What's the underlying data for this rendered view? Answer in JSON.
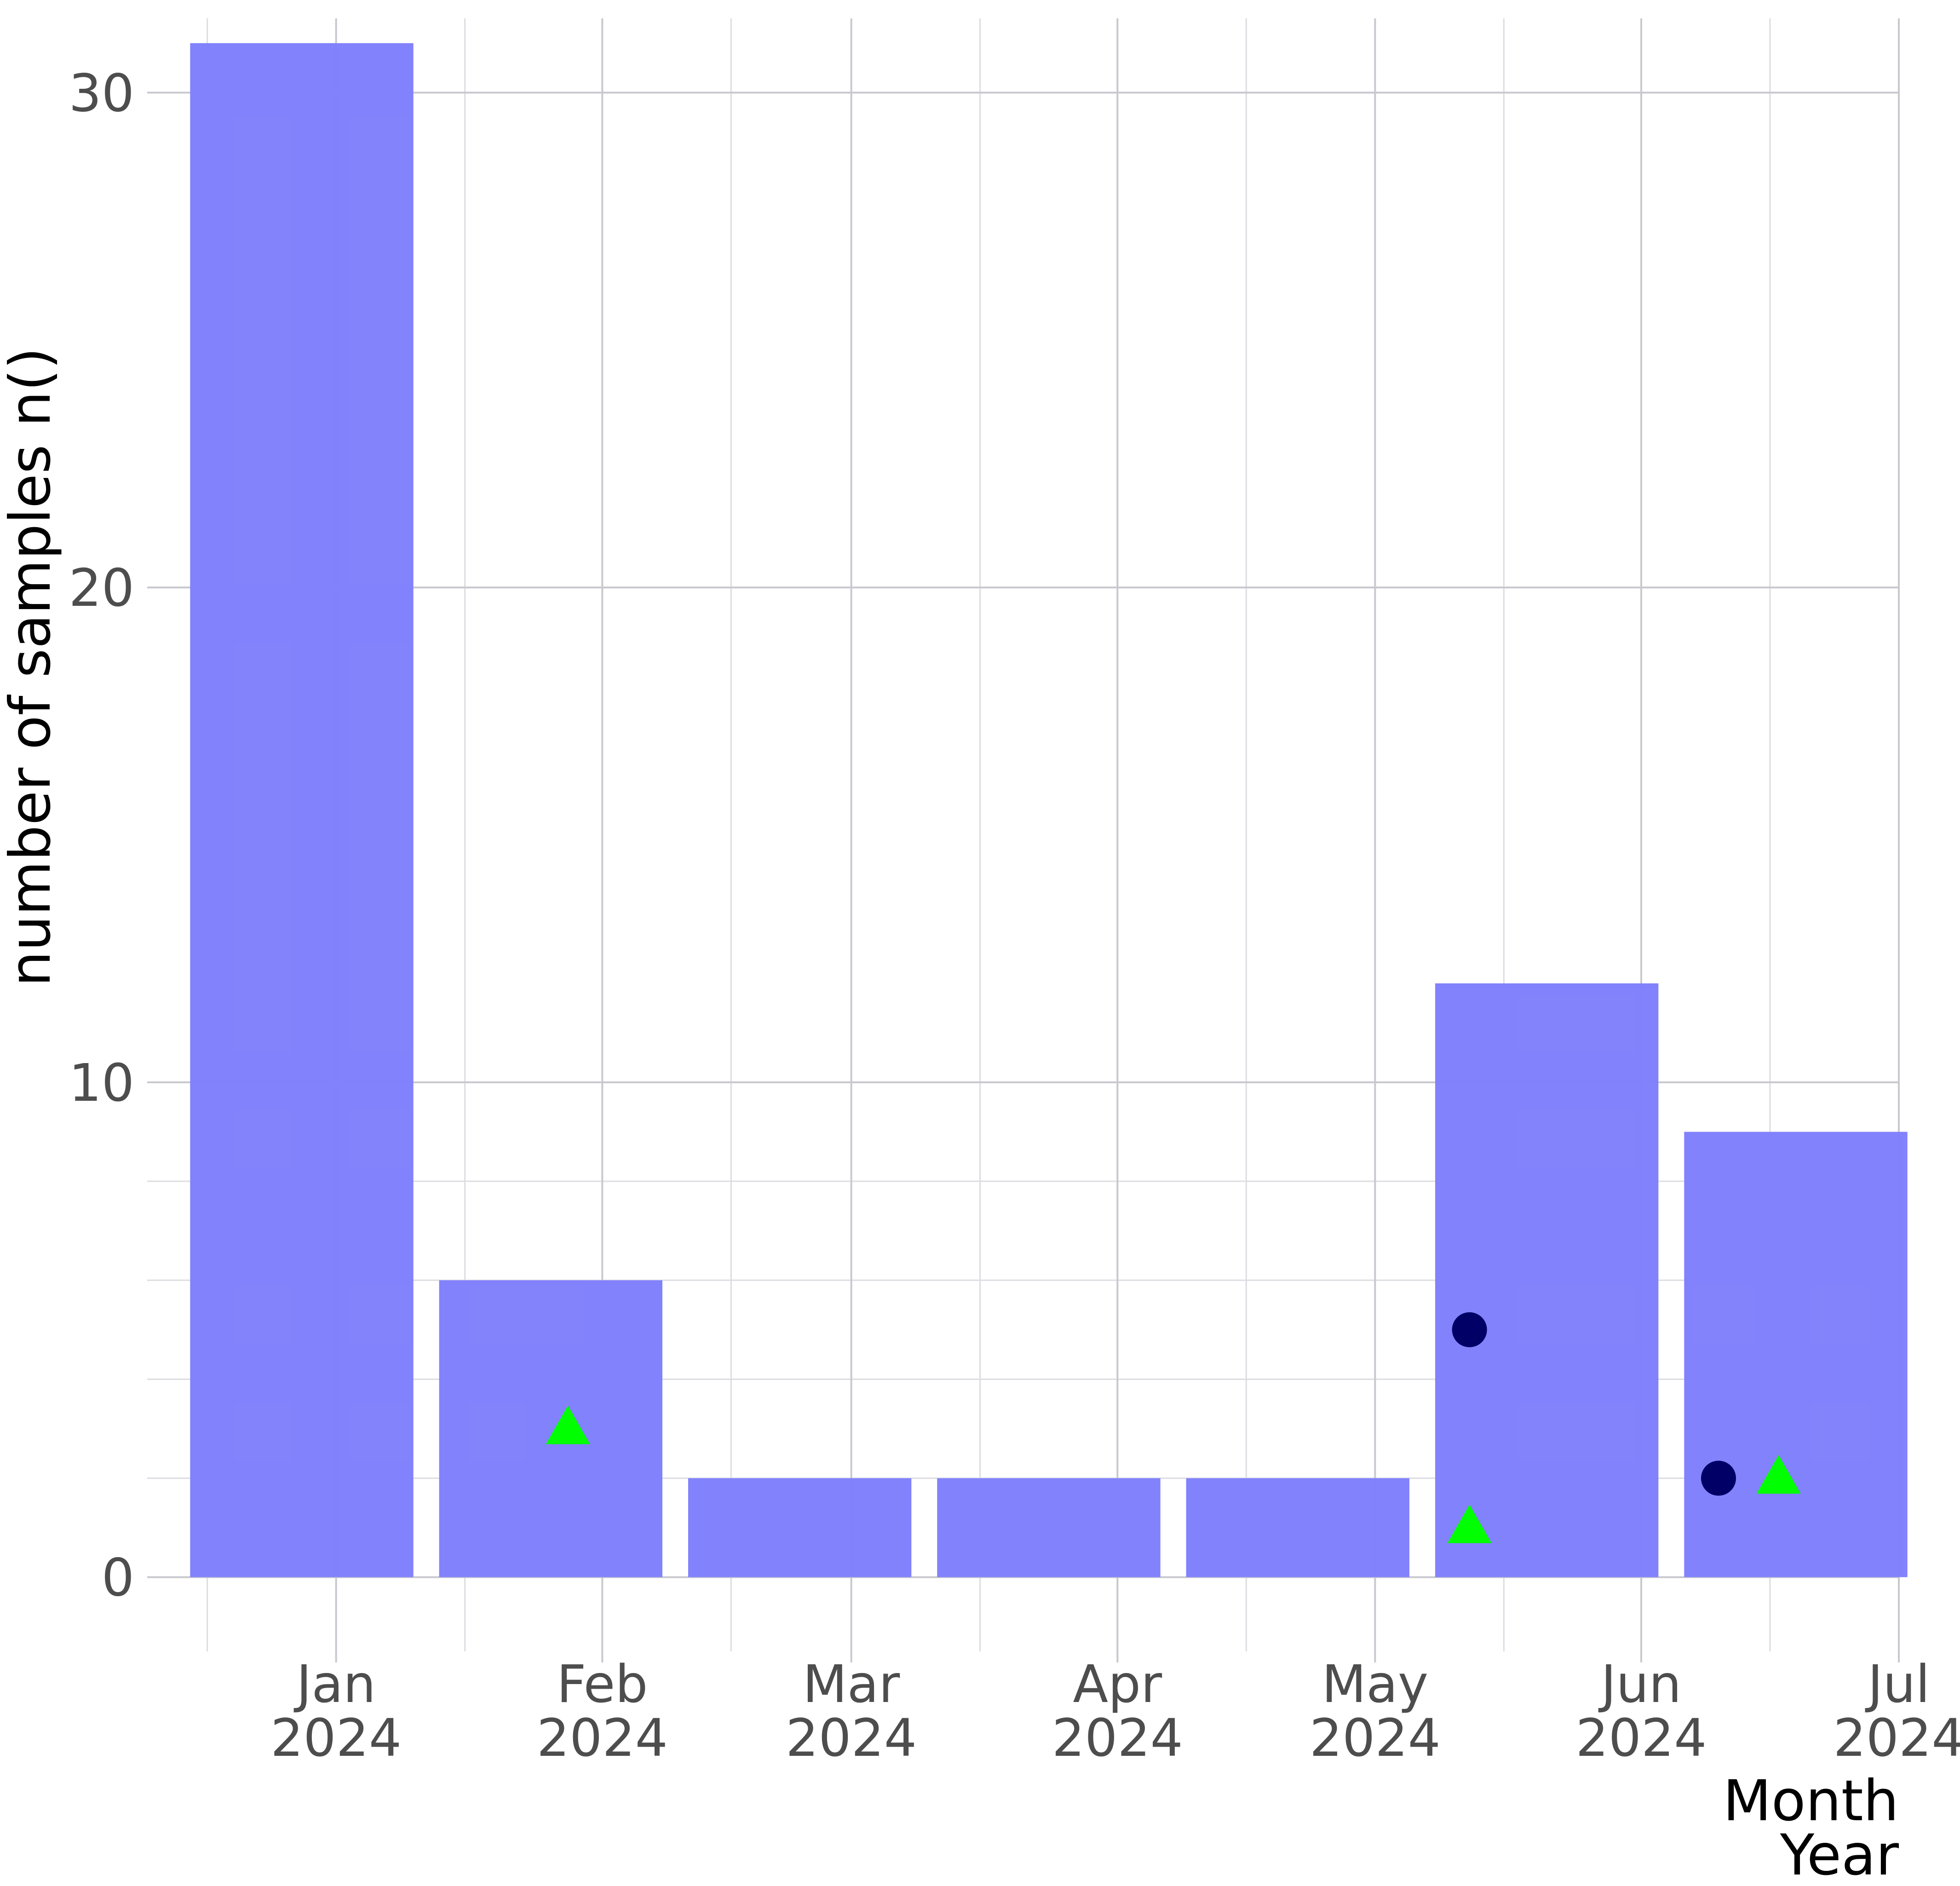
{
  "chart_data": {
    "type": "bar",
    "title": "",
    "xlabel": "Month\nYear",
    "ylabel": "number of samples n()",
    "x_ticks": [
      {
        "date": "2024-01-01",
        "line1": "Jan",
        "line2": "2024"
      },
      {
        "date": "2024-02-01",
        "line1": "Feb",
        "line2": "2024"
      },
      {
        "date": "2024-03-01",
        "line1": "Mar",
        "line2": "2024"
      },
      {
        "date": "2024-04-01",
        "line1": "Apr",
        "line2": "2024"
      },
      {
        "date": "2024-05-01",
        "line1": "May",
        "line2": "2024"
      },
      {
        "date": "2024-06-01",
        "line1": "Jun",
        "line2": "2024"
      },
      {
        "date": "2024-07-01",
        "line1": "Jul",
        "line2": "2024"
      }
    ],
    "x_minor_dates": [
      "2023-12-17",
      "2024-01-16",
      "2024-02-16",
      "2024-03-16",
      "2024-04-16",
      "2024-05-16",
      "2024-06-16"
    ],
    "xlim": [
      "2023-12-10",
      "2024-07-01"
    ],
    "y_ticks": [
      0,
      10,
      20,
      30
    ],
    "y_minor_ticks": [
      2,
      4,
      6,
      8
    ],
    "ylim": [
      -1.5,
      31.5
    ],
    "grid": true,
    "bar_color": "#8080fc",
    "bars": [
      {
        "x_start": "2023-12-15",
        "x_end": "2024-01-10",
        "value": 31
      },
      {
        "x_start": "2024-01-13",
        "x_end": "2024-02-08",
        "value": 6
      },
      {
        "x_start": "2024-02-11",
        "x_end": "2024-03-08",
        "value": 2
      },
      {
        "x_start": "2024-03-11",
        "x_end": "2024-04-06",
        "value": 2
      },
      {
        "x_start": "2024-04-09",
        "x_end": "2024-05-05",
        "value": 2
      },
      {
        "x_start": "2024-05-08",
        "x_end": "2024-06-03",
        "value": 12
      },
      {
        "x_start": "2024-06-06",
        "x_end": "2024-07-02",
        "value": 9
      }
    ],
    "point_series": [
      {
        "shape": "circle",
        "color": "#000066",
        "points": [
          {
            "x": "2024-05-12",
            "y": 5
          },
          {
            "x": "2024-06-10",
            "y": 2
          }
        ]
      },
      {
        "shape": "triangle",
        "color": "#00ff00",
        "points": [
          {
            "x": "2024-01-28",
            "y": 3
          },
          {
            "x": "2024-05-12",
            "y": 1
          },
          {
            "x": "2024-06-17",
            "y": 2
          }
        ]
      }
    ]
  }
}
